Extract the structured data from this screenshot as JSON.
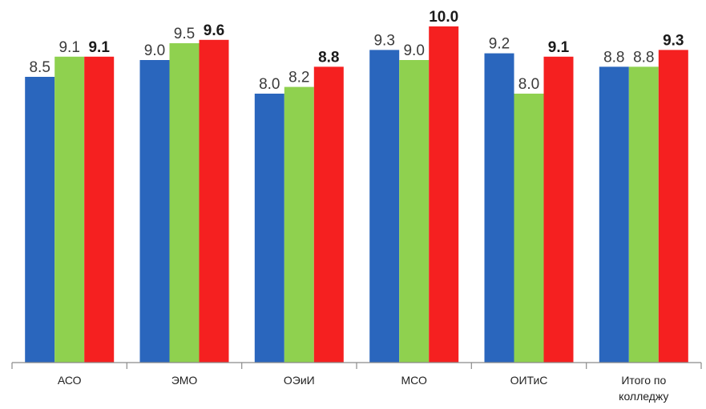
{
  "chart_data": {
    "type": "bar",
    "categories": [
      [
        "АСО"
      ],
      [
        "ЭМО"
      ],
      [
        "ОЭиИ"
      ],
      [
        "МСО"
      ],
      [
        "ОИТиС"
      ],
      [
        "Итого по",
        "колледжу"
      ]
    ],
    "series": [
      {
        "color": "#2A66BD",
        "values": [
          8.5,
          9.0,
          8.0,
          9.3,
          9.2,
          8.8
        ],
        "labels": [
          "8.5",
          "9.0",
          "8.0",
          "9.3",
          "9.2",
          "8.8"
        ],
        "bold": false
      },
      {
        "color": "#8FD14F",
        "values": [
          9.1,
          9.5,
          8.2,
          9.0,
          8.0,
          8.8
        ],
        "labels": [
          "9.1",
          "9.5",
          "8.2",
          "9.0",
          "8.0",
          "8.8"
        ],
        "bold": false
      },
      {
        "color": "#F52020",
        "values": [
          9.1,
          9.6,
          8.8,
          10.0,
          9.1,
          9.3
        ],
        "labels": [
          "9.1",
          "9.6",
          "8.8",
          "10.0",
          "9.1",
          "9.3"
        ],
        "bold": true
      }
    ],
    "ylim": [
      0,
      10.2
    ],
    "grid": false,
    "legend": "none",
    "xlabel": "",
    "ylabel": ""
  }
}
